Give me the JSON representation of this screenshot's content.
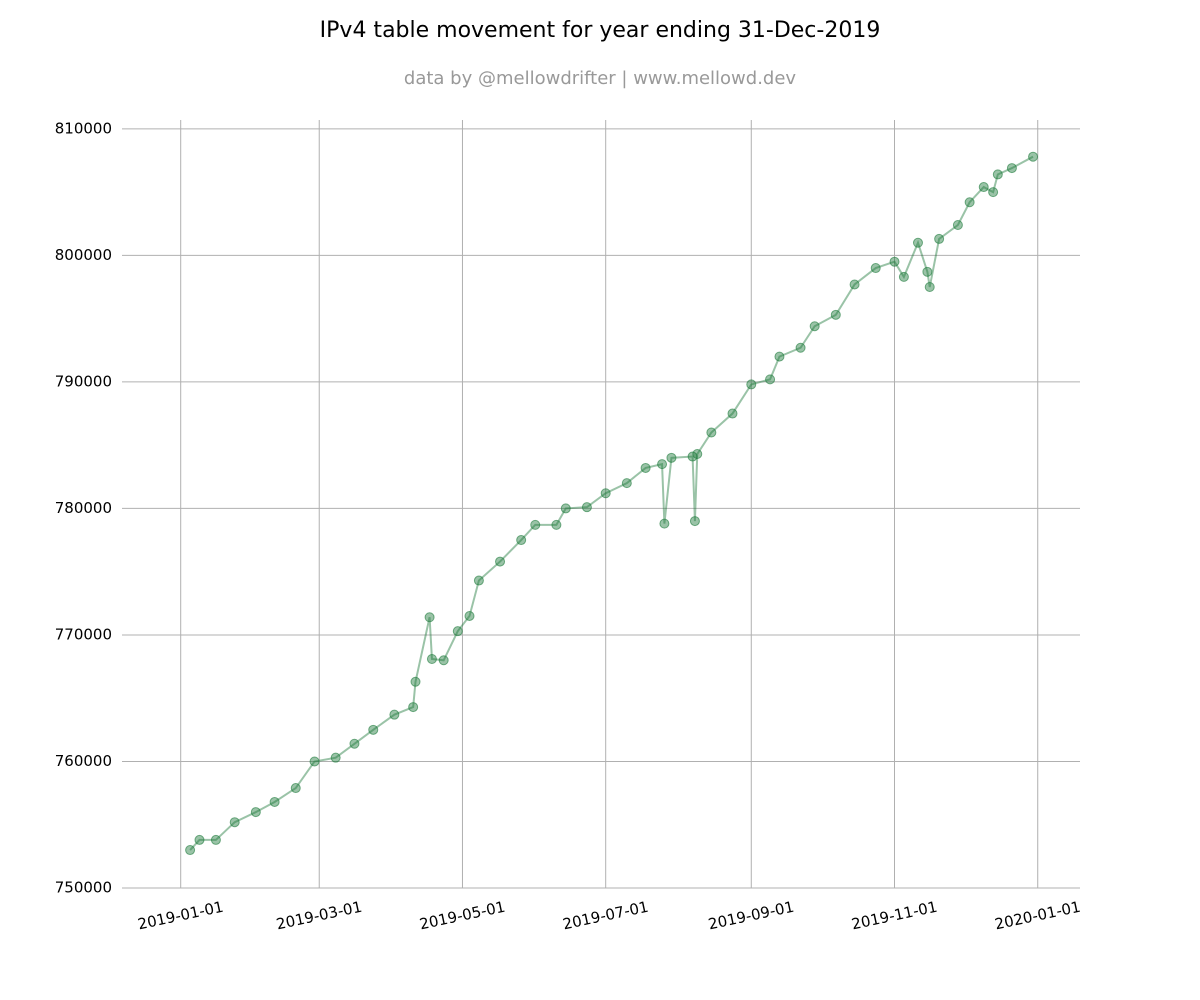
{
  "chart_data": {
    "type": "line",
    "title": "IPv4 table movement for year ending 31-Dec-2019",
    "subtitle": "data by @mellowdrifter | www.mellowd.dev",
    "x": [
      "2019-01-05",
      "2019-01-09",
      "2019-01-16",
      "2019-01-24",
      "2019-02-02",
      "2019-02-10",
      "2019-02-19",
      "2019-02-27",
      "2019-03-08",
      "2019-03-16",
      "2019-03-24",
      "2019-04-02",
      "2019-04-10",
      "2019-04-11",
      "2019-04-17",
      "2019-04-18",
      "2019-04-23",
      "2019-04-29",
      "2019-05-04",
      "2019-05-08",
      "2019-05-17",
      "2019-05-26",
      "2019-06-01",
      "2019-06-10",
      "2019-06-14",
      "2019-06-23",
      "2019-07-01",
      "2019-07-10",
      "2019-07-18",
      "2019-07-25",
      "2019-07-26",
      "2019-07-29",
      "2019-08-07",
      "2019-08-08",
      "2019-08-09",
      "2019-08-15",
      "2019-08-24",
      "2019-09-01",
      "2019-09-09",
      "2019-09-13",
      "2019-09-22",
      "2019-09-28",
      "2019-10-07",
      "2019-10-15",
      "2019-10-24",
      "2019-11-01",
      "2019-11-05",
      "2019-11-11",
      "2019-11-15",
      "2019-11-16",
      "2019-11-20",
      "2019-11-28",
      "2019-12-03",
      "2019-12-09",
      "2019-12-13",
      "2019-12-15",
      "2019-12-21",
      "2019-12-30"
    ],
    "series": [
      {
        "name": "IPv4",
        "color": "#1e7b3c",
        "values": [
          753000,
          753800,
          753800,
          755200,
          756000,
          756800,
          757900,
          760000,
          760300,
          761400,
          762500,
          763700,
          764300,
          766300,
          771400,
          768100,
          768000,
          770300,
          771500,
          774300,
          775800,
          777500,
          778700,
          778700,
          780000,
          780100,
          781200,
          782000,
          783200,
          783500,
          778800,
          784000,
          784100,
          779000,
          784300,
          786000,
          787500,
          789800,
          790200,
          792000,
          792700,
          794400,
          795300,
          797700,
          799000,
          799500,
          798300,
          801000,
          798700,
          797500,
          801300,
          802400,
          804200,
          805400,
          805000,
          806400,
          806900,
          807800
        ]
      }
    ],
    "xlim": [
      "2018-12-07",
      "2020-01-19"
    ],
    "xticks": [
      "2019-01-01",
      "2019-03-01",
      "2019-05-01",
      "2019-07-01",
      "2019-09-01",
      "2019-11-01",
      "2020-01-01"
    ],
    "ylim": [
      750000,
      810700
    ],
    "yticks": [
      750000,
      760000,
      770000,
      780000,
      790000,
      800000,
      810000
    ],
    "grid": true
  }
}
